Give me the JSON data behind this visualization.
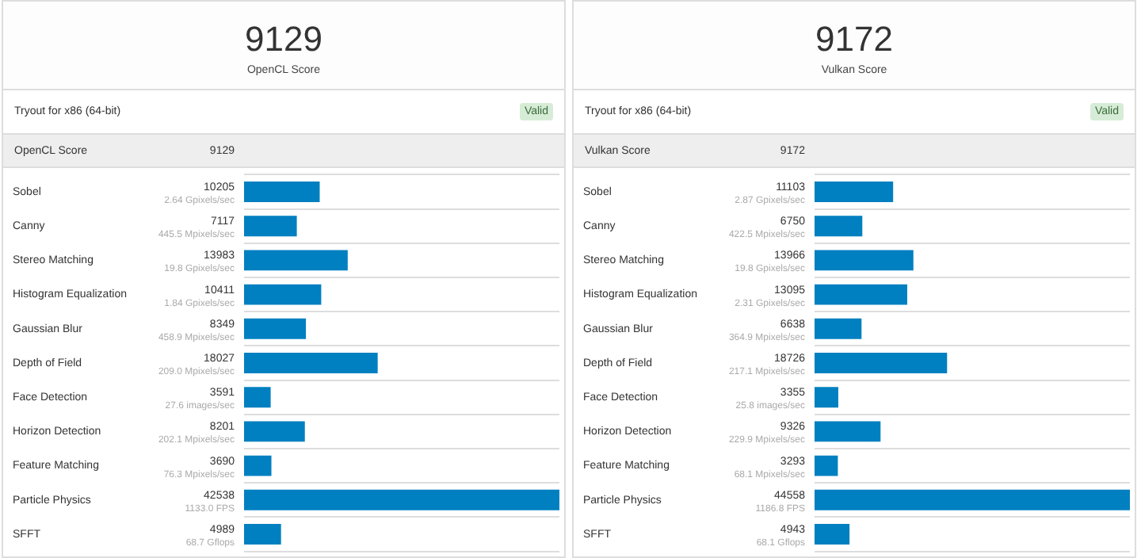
{
  "chart_data": [
    {
      "type": "bar",
      "orientation": "horizontal",
      "title": "9129",
      "subtitle": "OpenCL Score",
      "ylabel": "OpenCL Score",
      "color": "#0080c0",
      "data_labels": true,
      "grid": "y",
      "tick_labels": "y",
      "categories": [
        "Sobel",
        "Canny",
        "Stereo Matching",
        "Histogram Equalization",
        "Gaussian Blur",
        "Depth of Field",
        "Face Detection",
        "Horizon Detection",
        "Feature Matching",
        "Particle Physics",
        "SFFT"
      ],
      "values": [
        10205,
        7117,
        13983,
        10411,
        8349,
        18027,
        3591,
        8201,
        3690,
        42538,
        4989
      ],
      "annotations": [
        "Tryout for x86 (64-bit)",
        "Valid",
        "9129",
        "2.64 Gpixels/sec",
        "445.5 Mpixels/sec",
        "19.8 Gpixels/sec",
        "1.84 Gpixels/sec",
        "458.9 Mpixels/sec",
        "209.0 Mpixels/sec",
        "27.6 images/sec",
        "202.1 Mpixels/sec",
        "76.3 Mpixels/sec",
        "1133.0 FPS",
        "68.7 Gflops"
      ]
    },
    {
      "type": "bar",
      "orientation": "horizontal",
      "title": "9172",
      "subtitle": "Vulkan Score",
      "ylabel": "Vulkan Score",
      "color": "#0080c0",
      "data_labels": true,
      "grid": "y",
      "tick_labels": "y",
      "categories": [
        "Sobel",
        "Canny",
        "Stereo Matching",
        "Histogram Equalization",
        "Gaussian Blur",
        "Depth of Field",
        "Face Detection",
        "Horizon Detection",
        "Feature Matching",
        "Particle Physics",
        "SFFT"
      ],
      "values": [
        11103,
        6750,
        13966,
        13095,
        6638,
        18726,
        3355,
        9326,
        3293,
        44558,
        4943
      ],
      "annotations": [
        "Tryout for x86 (64-bit)",
        "Valid",
        "9172",
        "2.87 Gpixels/sec",
        "422.5 Mpixels/sec",
        "19.8 Gpixels/sec",
        "2.31 Gpixels/sec",
        "364.9 Mpixels/sec",
        "217.1 Mpixels/sec",
        "25.8 images/sec",
        "229.9 Mpixels/sec",
        "68.1 Mpixels/sec",
        "1186.8 FPS",
        "68.1 Gflops"
      ]
    }
  ]
}
